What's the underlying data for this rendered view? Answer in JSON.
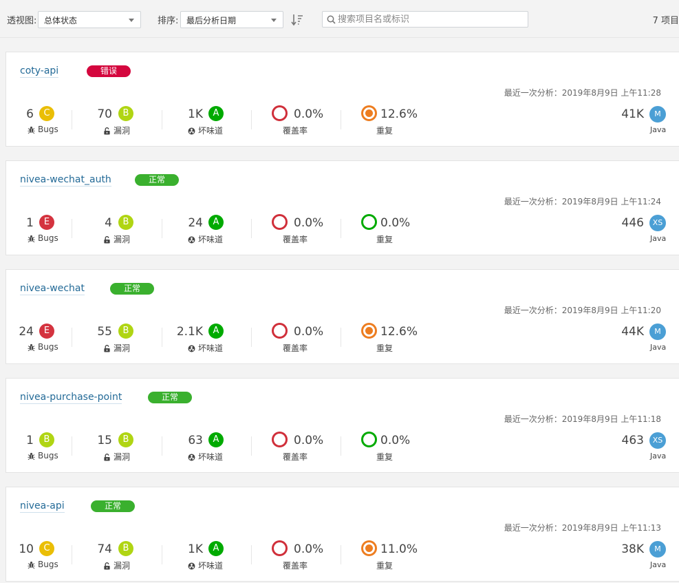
{
  "toolbar": {
    "perspective_label": "透视图:",
    "perspective_value": "总体状态",
    "sort_label": "排序:",
    "sort_value": "最后分析日期",
    "search_placeholder": "搜索项目名或标识",
    "count": "7 项目"
  },
  "labels": {
    "bugs": "Bugs",
    "vulnerabilities": "漏洞",
    "code_smells": "坏味道",
    "coverage": "覆盖率",
    "duplications": "重复"
  },
  "colors": {
    "status_error": "#d4073e",
    "status_ok": "#3ab02e",
    "rating_A": "#00aa00",
    "rating_B": "#b0d513",
    "rating_C": "#eabe06",
    "rating_E": "#d4333f",
    "size_badge": "#4b9fd5"
  },
  "projects": [
    {
      "name": "coty-api",
      "status": "错误",
      "status_type": "error",
      "analysis": "最近一次分析：2019年8月9日 上午11:28",
      "bugs": "6",
      "bugs_rating": "C",
      "vulns": "70",
      "vulns_rating": "B",
      "smells": "1K",
      "smells_rating": "A",
      "coverage": "0.0%",
      "dup": "12.6%",
      "dup_level": "hi",
      "size": "41K",
      "size_rating": "M",
      "language": "Java"
    },
    {
      "name": "nivea-wechat_auth",
      "status": "正常",
      "status_type": "ok",
      "analysis": "最近一次分析：2019年8月9日 上午11:24",
      "bugs": "1",
      "bugs_rating": "E",
      "vulns": "4",
      "vulns_rating": "B",
      "smells": "24",
      "smells_rating": "A",
      "coverage": "0.0%",
      "dup": "0.0%",
      "dup_level": "lo",
      "size": "446",
      "size_rating": "XS",
      "language": "Java"
    },
    {
      "name": "nivea-wechat",
      "status": "正常",
      "status_type": "ok",
      "analysis": "最近一次分析：2019年8月9日 上午11:20",
      "bugs": "24",
      "bugs_rating": "E",
      "vulns": "55",
      "vulns_rating": "B",
      "smells": "2.1K",
      "smells_rating": "A",
      "coverage": "0.0%",
      "dup": "12.6%",
      "dup_level": "hi",
      "size": "44K",
      "size_rating": "M",
      "language": "Java"
    },
    {
      "name": "nivea-purchase-point",
      "status": "正常",
      "status_type": "ok",
      "analysis": "最近一次分析：2019年8月9日 上午11:18",
      "bugs": "1",
      "bugs_rating": "B",
      "vulns": "15",
      "vulns_rating": "B",
      "smells": "63",
      "smells_rating": "A",
      "coverage": "0.0%",
      "dup": "0.0%",
      "dup_level": "lo",
      "size": "463",
      "size_rating": "XS",
      "language": "Java"
    },
    {
      "name": "nivea-api",
      "status": "正常",
      "status_type": "ok",
      "analysis": "最近一次分析：2019年8月9日 上午11:13",
      "bugs": "10",
      "bugs_rating": "C",
      "vulns": "74",
      "vulns_rating": "B",
      "smells": "1K",
      "smells_rating": "A",
      "coverage": "0.0%",
      "dup": "11.0%",
      "dup_level": "hi",
      "size": "38K",
      "size_rating": "M",
      "language": "Java"
    }
  ]
}
